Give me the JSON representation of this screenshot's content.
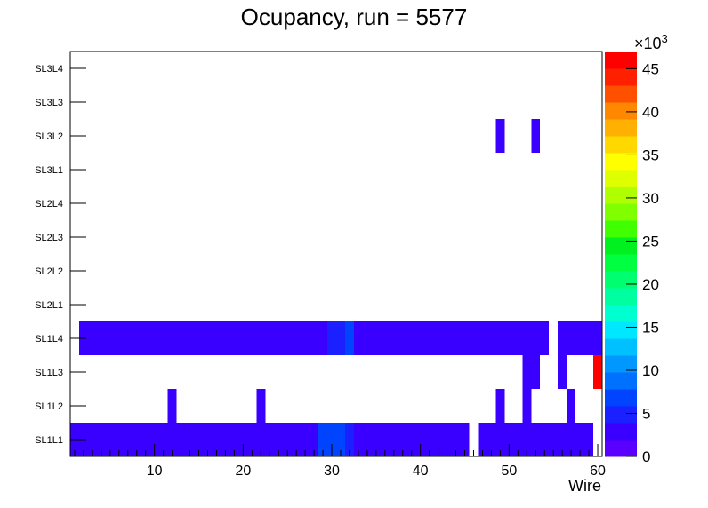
{
  "chart_data": {
    "type": "heatmap",
    "title": "Ocupancy, run = 5577",
    "xlabel": "Wire",
    "ylabel": "",
    "xlim": [
      0.5,
      60.5
    ],
    "x_ticks": [
      10,
      20,
      30,
      40,
      50,
      60
    ],
    "y_categories": [
      "SL1L1",
      "SL1L2",
      "SL1L3",
      "SL1L4",
      "SL2L1",
      "SL2L2",
      "SL2L3",
      "SL2L4",
      "SL3L1",
      "SL3L2",
      "SL3L3",
      "SL3L4"
    ],
    "z_range": [
      0,
      47000
    ],
    "z_ticks": [
      0,
      5,
      10,
      15,
      20,
      25,
      30,
      35,
      40,
      45
    ],
    "z_multiplier": "×10",
    "z_multiplier_exp": "3",
    "palette": [
      "#5a00ff",
      "#3a00ff",
      "#1a20ff",
      "#0044ff",
      "#0070ff",
      "#0098ff",
      "#00c0ff",
      "#00e8ff",
      "#00ffd0",
      "#00ffa0",
      "#00ff70",
      "#00ff40",
      "#00f020",
      "#40ff00",
      "#80ff00",
      "#b0ff00",
      "#ddff00",
      "#ffff00",
      "#ffd800",
      "#ffb000",
      "#ff8800",
      "#ff5000",
      "#ff2000",
      "#ff0000"
    ],
    "segments": [
      {
        "row": "SL1L1",
        "from": 1,
        "to": 28,
        "value": 3000
      },
      {
        "row": "SL1L1",
        "from": 29,
        "to": 31,
        "value": 7000
      },
      {
        "row": "SL1L1",
        "from": 32,
        "to": 32,
        "value": 5500
      },
      {
        "row": "SL1L1",
        "from": 33,
        "to": 45,
        "value": 3000
      },
      {
        "row": "SL1L1",
        "from": 47,
        "to": 59,
        "value": 3000
      },
      {
        "row": "SL1L2",
        "from": 12,
        "to": 12,
        "value": 3000
      },
      {
        "row": "SL1L2",
        "from": 22,
        "to": 22,
        "value": 3000
      },
      {
        "row": "SL1L2",
        "from": 49,
        "to": 49,
        "value": 3000
      },
      {
        "row": "SL1L2",
        "from": 52,
        "to": 52,
        "value": 3000
      },
      {
        "row": "SL1L2",
        "from": 57,
        "to": 57,
        "value": 3000
      },
      {
        "row": "SL1L3",
        "from": 52,
        "to": 53,
        "value": 3000
      },
      {
        "row": "SL1L3",
        "from": 56,
        "to": 56,
        "value": 3000
      },
      {
        "row": "SL1L3",
        "from": 60,
        "to": 60,
        "value": 46500
      },
      {
        "row": "SL1L4",
        "from": 2,
        "to": 29,
        "value": 3000
      },
      {
        "row": "SL1L4",
        "from": 30,
        "to": 31,
        "value": 5500
      },
      {
        "row": "SL1L4",
        "from": 32,
        "to": 32,
        "value": 7000
      },
      {
        "row": "SL1L4",
        "from": 33,
        "to": 54,
        "value": 3000
      },
      {
        "row": "SL1L4",
        "from": 56,
        "to": 60,
        "value": 3000
      },
      {
        "row": "SL3L2",
        "from": 49,
        "to": 49,
        "value": 3000
      },
      {
        "row": "SL3L2",
        "from": 53,
        "to": 53,
        "value": 3000
      }
    ]
  }
}
